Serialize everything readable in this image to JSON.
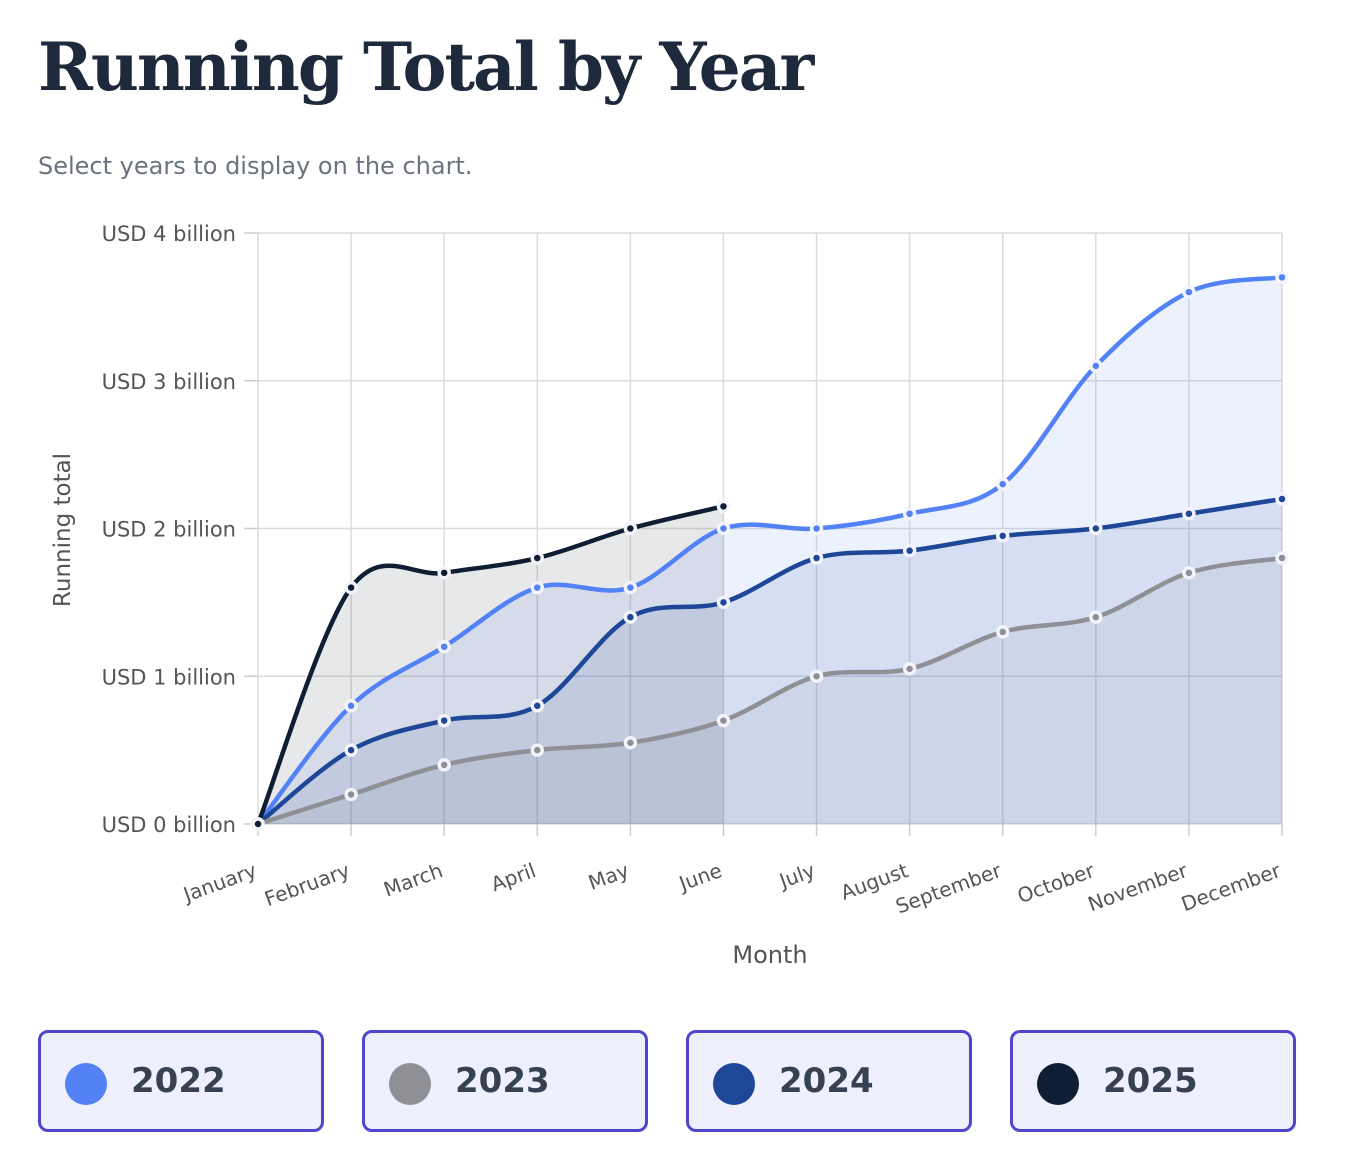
{
  "chart_data": {
    "type": "area",
    "title": "Running Total by Year",
    "subtitle": "Select years to display on the chart.",
    "y_label": "Running total",
    "x_label": "Month",
    "categories": [
      "January",
      "February",
      "March",
      "April",
      "May",
      "June",
      "July",
      "August",
      "September",
      "October",
      "November",
      "December"
    ],
    "series": [
      {
        "name": "2022",
        "color": "#5282f5",
        "values": [
          0,
          0.8,
          1.2,
          1.6,
          1.6,
          2.0,
          2.0,
          2.1,
          2.3,
          3.1,
          3.6,
          3.7
        ]
      },
      {
        "name": "2023",
        "color": "#8f9096",
        "values": [
          0,
          0.2,
          0.4,
          0.5,
          0.55,
          0.7,
          1.0,
          1.05,
          1.3,
          1.4,
          1.7,
          1.8
        ]
      },
      {
        "name": "2024",
        "color": "#1f4797",
        "values": [
          0,
          0.5,
          0.7,
          0.8,
          1.4,
          1.5,
          1.8,
          1.85,
          1.95,
          2.0,
          2.1,
          2.2
        ]
      },
      {
        "name": "2025",
        "color": "#0f1e33",
        "values": [
          0,
          1.6,
          1.7,
          1.8,
          2.0,
          2.15,
          null,
          null,
          null,
          null,
          null,
          null
        ]
      }
    ],
    "ylim": [
      0,
      4
    ],
    "yticks": [
      {
        "value": 0,
        "label": "USD 0 billion"
      },
      {
        "value": 1,
        "label": "USD 1 billion"
      },
      {
        "value": 2,
        "label": "USD 2 billion"
      },
      {
        "value": 3,
        "label": "USD 3 billion"
      },
      {
        "value": 4,
        "label": "USD 4 billion"
      }
    ],
    "grid": true
  }
}
